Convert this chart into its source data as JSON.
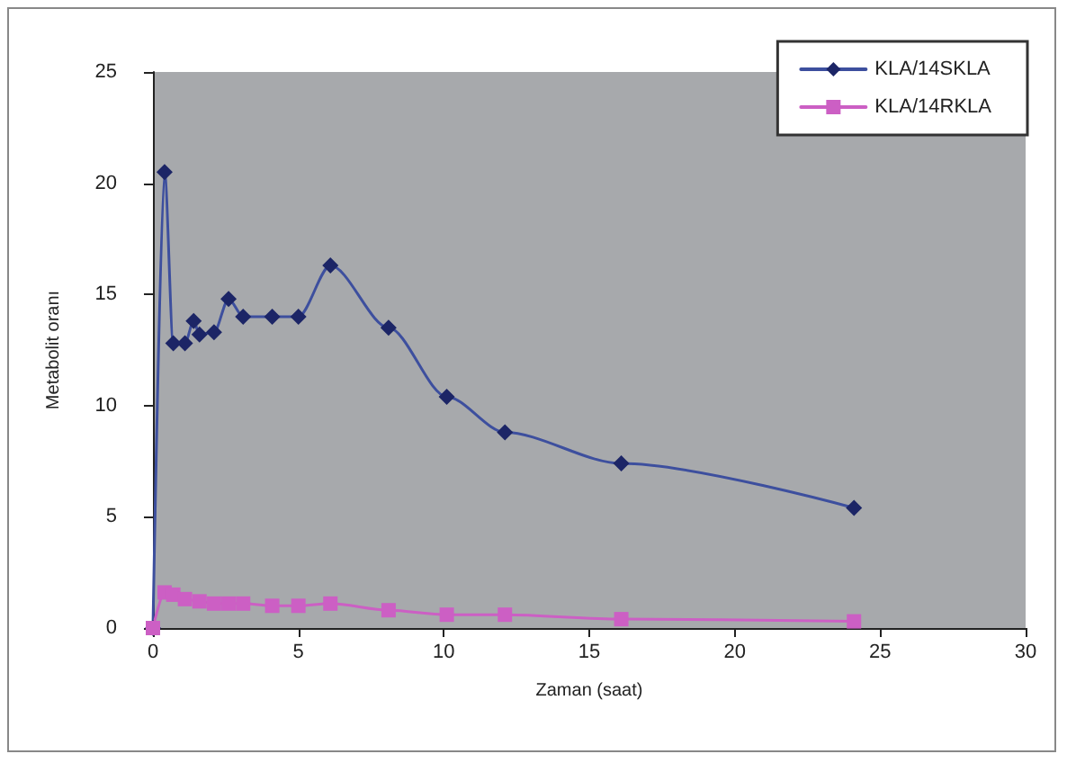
{
  "chart_data": {
    "type": "line",
    "xlabel": "Zaman (saat)",
    "ylabel": "Metabolit oranı",
    "x": [
      0,
      0.4,
      0.7,
      1.1,
      1.4,
      1.6,
      2.1,
      2.6,
      3.1,
      4.1,
      5,
      6.1,
      8.1,
      10.1,
      12.1,
      16.1,
      24.1
    ],
    "series": [
      {
        "name": "KLA/14SKLA",
        "color": "#1c2566",
        "marker": "diamond",
        "values": [
          0,
          20.5,
          12.8,
          12.8,
          13.8,
          13.2,
          13.3,
          14.8,
          14,
          14,
          14,
          16.3,
          13.5,
          10.4,
          8.8,
          7.4,
          5.4
        ]
      },
      {
        "name": "KLA/14RKLA",
        "color": "#cc5fc4",
        "marker": "square",
        "values": [
          0,
          1.6,
          1.5,
          1.3,
          null,
          1.2,
          1.1,
          1.1,
          1.1,
          1,
          1,
          1.1,
          0.8,
          0.6,
          0.6,
          0.4,
          0.3
        ]
      }
    ],
    "xlim": [
      0,
      30
    ],
    "xticks": [
      0,
      5,
      10,
      15,
      20,
      25,
      30
    ],
    "ylim": [
      0,
      25
    ],
    "yticks": [
      0,
      5,
      10,
      15,
      20,
      25
    ],
    "grid": false,
    "legend": "top right"
  }
}
